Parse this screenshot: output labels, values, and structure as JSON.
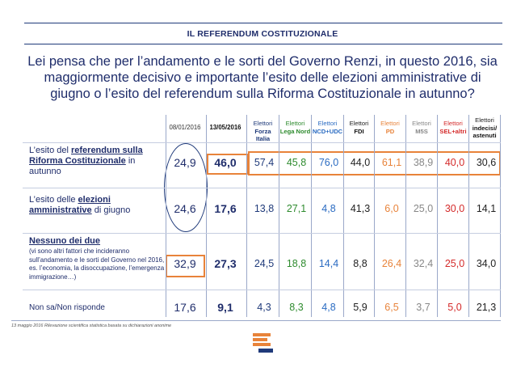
{
  "header": {
    "title": "IL REFERENDUM COSTITUZIONALE"
  },
  "question": "Lei pensa che per l’andamento e le sorti del Governo Renzi, in questo 2016, sia maggiormente decisivo e importante l’esito delle elezioni amministrative di giugno o l’esito del referendum sulla Riforma Costituzionale in autunno?",
  "columns": {
    "date1": "08/01/2016",
    "date2": "13/05/2016",
    "electorates": [
      {
        "e": "Elettori",
        "p": "Forza Italia",
        "color": "#1f3a7a"
      },
      {
        "e": "Elettori",
        "p": "Lega Nord",
        "color": "#2e8b2e"
      },
      {
        "e": "Elettori",
        "p": "NCD+UDC",
        "color": "#2a6bc2"
      },
      {
        "e": "Elettori",
        "p": "FDI",
        "color": "#222222"
      },
      {
        "e": "Elettori",
        "p": "PD",
        "color": "#e8833a"
      },
      {
        "e": "Elettori",
        "p": "M5S",
        "color": "#888888"
      },
      {
        "e": "Elettori",
        "p": "SEL+altri",
        "color": "#d42a2a"
      },
      {
        "e": "Elettori",
        "p": "indecisi/ astenuti",
        "color": "#222222"
      }
    ]
  },
  "rows": [
    {
      "pre": "L’esito del ",
      "bold": "referendum sulla Riforma Costituzionale",
      "post": " in autunno",
      "small": "",
      "d1": "24,9",
      "d2": "46,0",
      "vals": [
        "57,4",
        "45,8",
        "76,0",
        "44,0",
        "61,1",
        "38,9",
        "40,0",
        "30,6"
      ]
    },
    {
      "pre": "L’esito delle ",
      "bold": "elezioni amministrative",
      "post": " di giugno",
      "small": "",
      "d1": "24,6",
      "d2": "17,6",
      "vals": [
        "13,8",
        "27,1",
        "4,8",
        "41,3",
        "6,0",
        "25,0",
        "30,0",
        "14,1"
      ]
    },
    {
      "pre": "",
      "bold": "Nessuno dei due",
      "post": "",
      "small": "(vi sono altri fattori che incideranno sull’andamento e le sorti del Governo nel 2016, es. l’economia, la disoccupazione, l’emergenza immigrazione…)",
      "d1": "32,9",
      "d2": "27,3",
      "vals": [
        "24,5",
        "18,8",
        "14,4",
        "8,8",
        "26,4",
        "32,4",
        "25,0",
        "34,0"
      ]
    },
    {
      "pre": "Non sa/Non risponde",
      "bold": "",
      "post": "",
      "small": "",
      "d1": "17,6",
      "d2": "9,1",
      "vals": [
        "4,3",
        "8,3",
        "4,8",
        "5,9",
        "6,5",
        "3,7",
        "5,0",
        "21,3"
      ]
    }
  ],
  "footnote": "13 maggio 2016 Rilevazione scientifica statistica basata su dichiarazioni anonime"
}
